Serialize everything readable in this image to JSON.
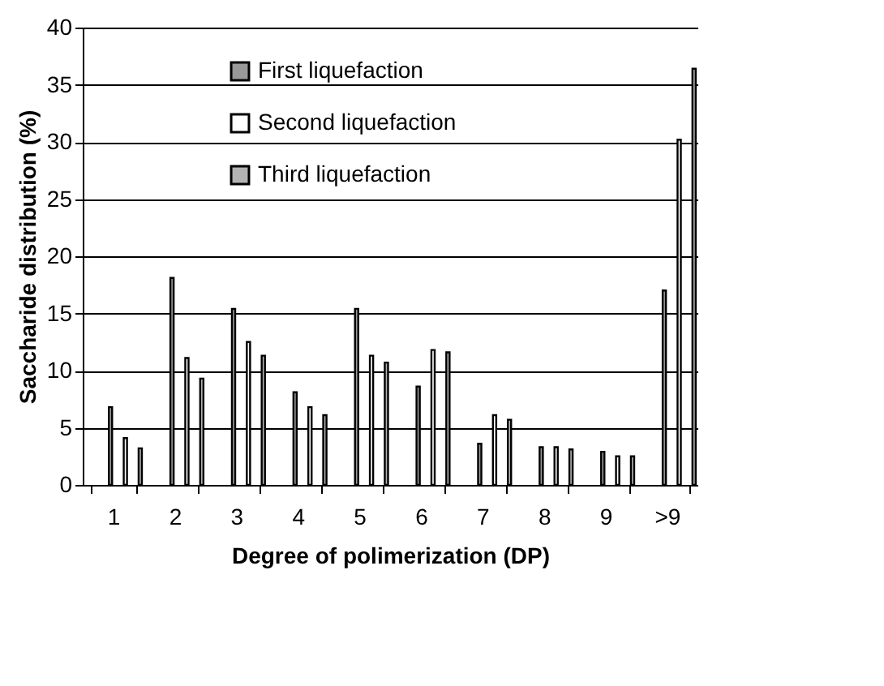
{
  "chart_data": {
    "type": "bar",
    "xlabel": "Degree of polimerization (DP)",
    "ylabel": "Saccharide distribution (%)",
    "categories": [
      "1",
      "2",
      "3",
      "4",
      "5",
      "6",
      "7",
      "8",
      "9",
      ">9"
    ],
    "series": [
      {
        "name": "First liquefaction",
        "color": "#999999",
        "values": [
          6.8,
          18.1,
          15.4,
          8.1,
          15.4,
          8.6,
          3.6,
          3.3,
          2.9,
          17
        ]
      },
      {
        "name": "Second liquefaction",
        "color": "#ffffff",
        "values": [
          4.1,
          11.1,
          12.5,
          6.8,
          11.3,
          11.8,
          6.1,
          3.3,
          2.5,
          30.2
        ]
      },
      {
        "name": "Third liquefaction",
        "color": "#b3b3b3",
        "values": [
          3.2,
          9.3,
          11.3,
          6.1,
          10.7,
          11.6,
          5.7,
          3.1,
          2.5,
          36.4
        ]
      }
    ],
    "ylim": [
      0,
      40
    ],
    "yticks": [
      0,
      5,
      10,
      15,
      20,
      25,
      30,
      35,
      40
    ],
    "grid": "y",
    "legend": "top left"
  }
}
